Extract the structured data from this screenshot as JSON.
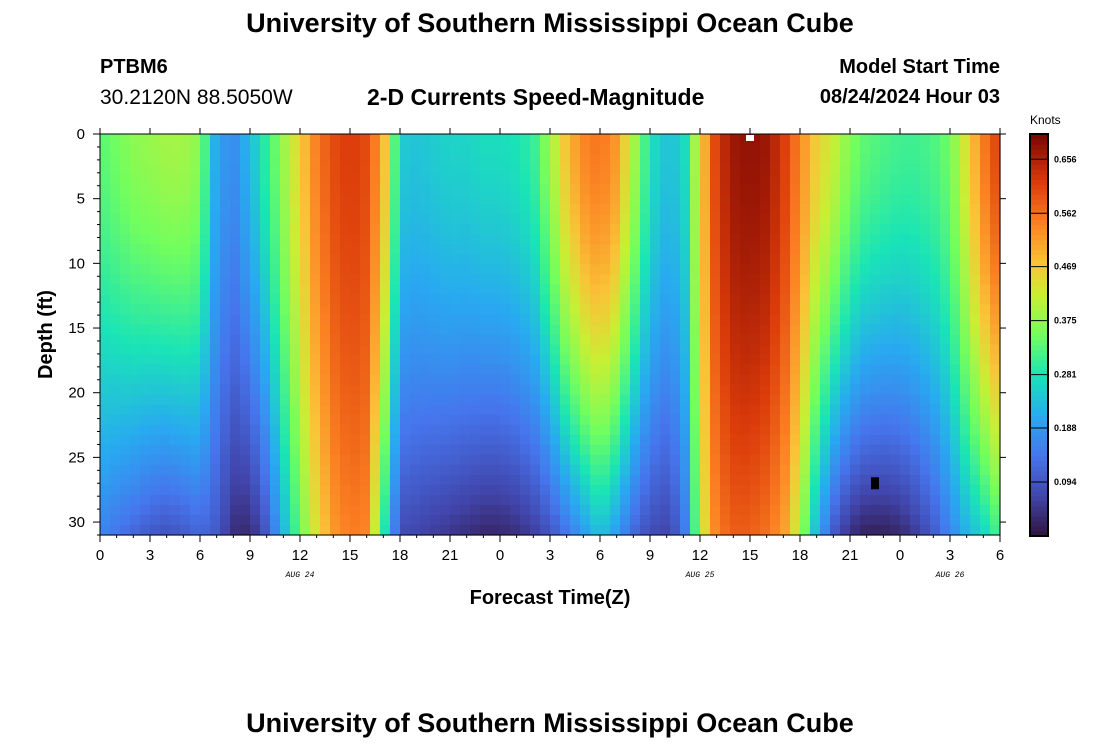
{
  "header": {
    "title": "University of Southern Mississippi Ocean Cube",
    "station": "PTBM6",
    "coordinates": "30.2120N  88.5050W",
    "subtitle": "2-D Currents Speed-Magnitude",
    "model_start_label": "Model Start Time",
    "model_start_value": "08/24/2024 Hour 03"
  },
  "footer": {
    "title": "University of Southern Mississippi Ocean Cube"
  },
  "chart_data": {
    "type": "heatmap",
    "title": "2-D Currents Speed-Magnitude",
    "xlabel": "Forecast Time(Z)",
    "ylabel": "Depth (ft)",
    "x_unit": "hours since AUG 24 00Z",
    "xlim": [
      0,
      54
    ],
    "ylim": [
      0,
      31
    ],
    "y_inverted": true,
    "x_ticks": [
      {
        "value": 0,
        "label": "0"
      },
      {
        "value": 3,
        "label": "3"
      },
      {
        "value": 6,
        "label": "6"
      },
      {
        "value": 9,
        "label": "9"
      },
      {
        "value": 12,
        "label": "12"
      },
      {
        "value": 15,
        "label": "15"
      },
      {
        "value": 18,
        "label": "18"
      },
      {
        "value": 21,
        "label": "21"
      },
      {
        "value": 24,
        "label": "0"
      },
      {
        "value": 27,
        "label": "3"
      },
      {
        "value": 30,
        "label": "6"
      },
      {
        "value": 33,
        "label": "9"
      },
      {
        "value": 36,
        "label": "12"
      },
      {
        "value": 39,
        "label": "15"
      },
      {
        "value": 42,
        "label": "18"
      },
      {
        "value": 45,
        "label": "21"
      },
      {
        "value": 48,
        "label": "0"
      },
      {
        "value": 51,
        "label": "3"
      },
      {
        "value": 54,
        "label": "6"
      }
    ],
    "y_ticks": [
      0,
      5,
      10,
      15,
      20,
      25,
      30
    ],
    "date_labels": [
      {
        "value": 12,
        "label": "AUG 24"
      },
      {
        "value": 36,
        "label": "AUG 25"
      },
      {
        "value": 51,
        "label": "AUG 26"
      }
    ],
    "colorbar": {
      "unit": "Knots",
      "min": 0.0,
      "max": 0.7,
      "ticks": [
        0.094,
        0.188,
        0.281,
        0.375,
        0.469,
        0.562,
        0.656
      ],
      "tick_labels": [
        "0.094",
        "0.188",
        "0.281",
        "0.375",
        "0.469",
        "0.562",
        "0.656"
      ]
    },
    "speed_profile": {
      "description": "Approximate current speed (knots) by forecast hour; value_top applies near surface, value_bottom near 31 ft, blended with depth",
      "x": [
        0,
        1,
        2,
        3,
        4,
        5,
        6,
        7,
        8,
        9,
        10,
        11,
        12,
        13,
        14,
        15,
        16,
        17,
        18,
        19,
        20,
        21,
        22,
        23,
        24,
        25,
        26,
        27,
        28,
        29,
        30,
        31,
        32,
        33,
        34,
        35,
        36,
        37,
        38,
        39,
        40,
        41,
        42,
        43,
        44,
        45,
        46,
        47,
        48,
        49,
        50,
        51,
        52,
        53,
        54
      ],
      "value_top": [
        0.33,
        0.35,
        0.37,
        0.38,
        0.39,
        0.39,
        0.37,
        0.2,
        0.17,
        0.23,
        0.3,
        0.38,
        0.46,
        0.55,
        0.6,
        0.62,
        0.6,
        0.5,
        0.25,
        0.24,
        0.25,
        0.26,
        0.26,
        0.27,
        0.27,
        0.28,
        0.3,
        0.38,
        0.48,
        0.54,
        0.56,
        0.52,
        0.4,
        0.28,
        0.24,
        0.25,
        0.45,
        0.62,
        0.67,
        0.68,
        0.67,
        0.62,
        0.54,
        0.46,
        0.42,
        0.36,
        0.33,
        0.32,
        0.31,
        0.31,
        0.32,
        0.35,
        0.44,
        0.55,
        0.62
      ],
      "value_bottom": [
        0.16,
        0.14,
        0.12,
        0.1,
        0.09,
        0.1,
        0.12,
        0.1,
        0.04,
        0.03,
        0.1,
        0.22,
        0.34,
        0.44,
        0.52,
        0.55,
        0.54,
        0.3,
        0.08,
        0.07,
        0.06,
        0.05,
        0.04,
        0.03,
        0.03,
        0.04,
        0.06,
        0.09,
        0.14,
        0.19,
        0.24,
        0.19,
        0.12,
        0.08,
        0.07,
        0.12,
        0.4,
        0.55,
        0.58,
        0.58,
        0.56,
        0.52,
        0.4,
        0.22,
        0.1,
        0.04,
        0.02,
        0.02,
        0.03,
        0.06,
        0.1,
        0.16,
        0.22,
        0.26,
        0.32
      ]
    },
    "markers": [
      {
        "x": 39,
        "y": 0,
        "color": "#ffffff"
      },
      {
        "x": 46.5,
        "y": 27,
        "color": "#000000"
      }
    ]
  }
}
